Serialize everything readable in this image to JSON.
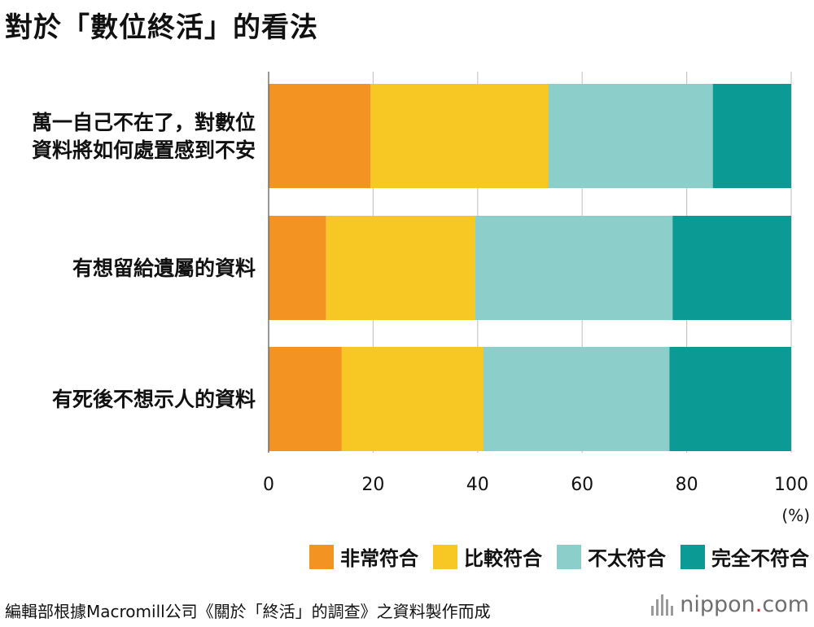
{
  "title": "對於「數位終活」的看法",
  "chart_data": {
    "type": "bar",
    "orientation": "horizontal",
    "stacked": true,
    "categories": [
      [
        "萬一自己不在了，對數位",
        "資料將如何處置感到不安"
      ],
      [
        "有想留給遺屬的資料"
      ],
      [
        "有死後不想示人的資料"
      ]
    ],
    "series": [
      {
        "name": "非常符合",
        "color": "#f39322",
        "values": [
          19.5,
          11.0,
          14.0
        ]
      },
      {
        "name": "比較符合",
        "color": "#f7c823",
        "values": [
          34.0,
          28.5,
          27.0
        ]
      },
      {
        "name": "不太符合",
        "color": "#8ccfca",
        "values": [
          31.5,
          37.8,
          35.7
        ]
      },
      {
        "name": "完全不符合",
        "color": "#0b9b94",
        "values": [
          15.0,
          22.7,
          23.3
        ]
      }
    ],
    "xlim": [
      0,
      100
    ],
    "xticks": [
      0,
      20,
      40,
      60,
      80,
      100
    ],
    "xunit": "(%)",
    "grid": true,
    "legend_position": "bottom-right"
  },
  "footer": {
    "source": "編輯部根據Macromill公司《關於「終活」的調查》之資料製作而成"
  },
  "logo": {
    "name": "nippon",
    "dot": ".",
    "suffix": "com"
  }
}
